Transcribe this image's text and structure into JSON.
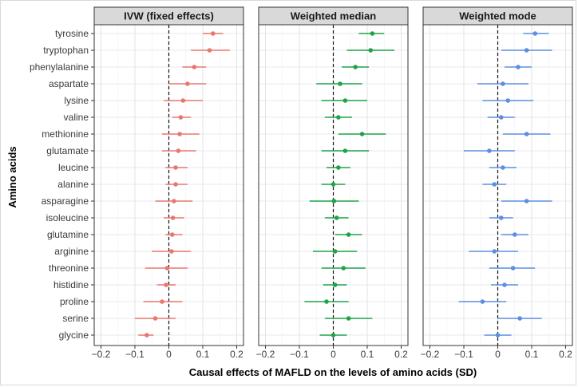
{
  "chart_data": {
    "type": "forest",
    "xlabel": "Causal effects of MAFLD on the levels of amino acids (SD)",
    "ylabel": "Amino acids",
    "xlim": [
      -0.22,
      0.22
    ],
    "xticks": [
      -0.2,
      -0.1,
      0,
      0.1,
      0.2
    ],
    "xtick_labels": [
      "−0.2",
      "−0.1",
      "0",
      "0.1",
      "0.2"
    ],
    "reference_line": 0,
    "grid": true,
    "categories": [
      "tyrosine",
      "tryptophan",
      "phenylalanine",
      "aspartate",
      "lysine",
      "valine",
      "methionine",
      "glutamate",
      "leucine",
      "alanine",
      "asparagine",
      "isoleucine",
      "glutamine",
      "arginine",
      "threonine",
      "histidine",
      "proline",
      "serine",
      "glycine"
    ],
    "panels": [
      {
        "title": "IVW (fixed effects)",
        "color": "#E8776F",
        "estimates": [
          0.13,
          0.12,
          0.075,
          0.055,
          0.042,
          0.035,
          0.032,
          0.028,
          0.02,
          0.02,
          0.015,
          0.012,
          0.01,
          0.008,
          -0.005,
          -0.008,
          -0.02,
          -0.04,
          -0.065
        ],
        "lower": [
          0.1,
          0.065,
          0.04,
          0.0,
          -0.015,
          0.01,
          -0.02,
          -0.02,
          -0.01,
          -0.01,
          -0.04,
          -0.015,
          -0.01,
          -0.05,
          -0.07,
          -0.035,
          -0.075,
          -0.1,
          -0.09
        ],
        "upper": [
          0.16,
          0.18,
          0.11,
          0.11,
          0.1,
          0.065,
          0.09,
          0.08,
          0.055,
          0.055,
          0.07,
          0.045,
          0.04,
          0.065,
          0.055,
          0.02,
          0.04,
          0.02,
          -0.045
        ]
      },
      {
        "title": "Weighted median",
        "color": "#1EA34A",
        "estimates": [
          0.115,
          0.11,
          0.065,
          0.02,
          0.035,
          0.015,
          0.085,
          0.035,
          0.015,
          0.0,
          0.002,
          0.01,
          0.045,
          0.005,
          0.03,
          0.005,
          -0.02,
          0.045,
          0.0
        ],
        "lower": [
          0.075,
          0.04,
          0.025,
          -0.05,
          -0.035,
          -0.025,
          0.015,
          -0.035,
          -0.02,
          -0.035,
          -0.07,
          -0.025,
          0.005,
          -0.06,
          -0.035,
          -0.03,
          -0.085,
          -0.025,
          -0.04
        ],
        "upper": [
          0.15,
          0.18,
          0.105,
          0.085,
          0.1,
          0.055,
          0.155,
          0.105,
          0.05,
          0.035,
          0.075,
          0.045,
          0.085,
          0.07,
          0.095,
          0.04,
          0.045,
          0.115,
          0.04
        ]
      },
      {
        "title": "Weighted mode",
        "color": "#5B8FE0",
        "estimates": [
          0.11,
          0.085,
          0.06,
          0.015,
          0.03,
          0.01,
          0.085,
          -0.025,
          0.015,
          -0.01,
          0.085,
          0.01,
          0.05,
          -0.01,
          0.045,
          0.02,
          -0.045,
          0.065,
          0.0
        ],
        "lower": [
          0.075,
          0.01,
          0.02,
          -0.06,
          -0.045,
          -0.03,
          0.015,
          -0.1,
          -0.025,
          -0.045,
          0.01,
          -0.025,
          0.01,
          -0.085,
          -0.025,
          -0.02,
          -0.115,
          0.0,
          -0.04
        ],
        "upper": [
          0.15,
          0.16,
          0.1,
          0.09,
          0.105,
          0.05,
          0.155,
          0.05,
          0.055,
          0.025,
          0.16,
          0.045,
          0.09,
          0.06,
          0.11,
          0.06,
          0.025,
          0.13,
          0.04
        ]
      }
    ]
  }
}
